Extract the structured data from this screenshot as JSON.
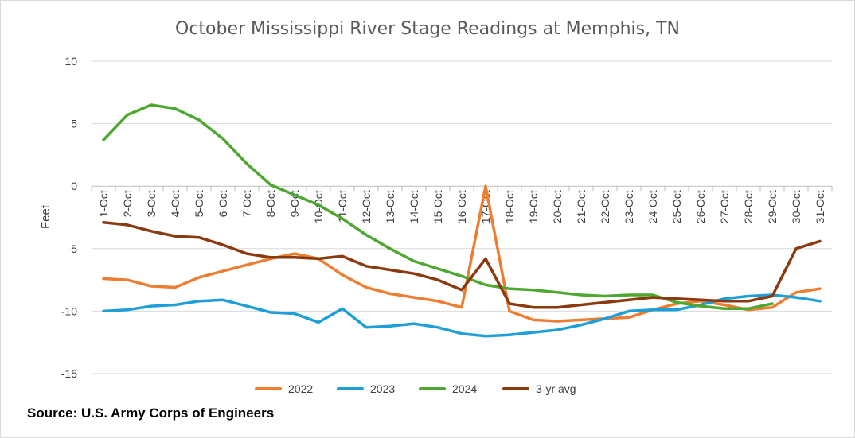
{
  "chart_data": {
    "type": "line",
    "title": "October Mississippi River Stage Readings at Memphis, TN",
    "xlabel": "",
    "ylabel": "Feet",
    "ylim": [
      -15,
      10
    ],
    "yticks": [
      10,
      5,
      0,
      -5,
      -10,
      -15
    ],
    "grid": true,
    "legend_position": "bottom",
    "categories": [
      "1-Oct",
      "2-Oct",
      "3-Oct",
      "4-Oct",
      "5-Oct",
      "6-Oct",
      "7-Oct",
      "8-Oct",
      "9-Oct",
      "10-Oct",
      "11-Oct",
      "12-Oct",
      "13-Oct",
      "14-Oct",
      "15-Oct",
      "16-Oct",
      "17-Oct",
      "18-Oct",
      "19-Oct",
      "20-Oct",
      "21-Oct",
      "22-Oct",
      "23-Oct",
      "24-Oct",
      "25-Oct",
      "26-Oct",
      "27-Oct",
      "28-Oct",
      "29-Oct",
      "30-Oct",
      "31-Oct"
    ],
    "series": [
      {
        "name": "2022",
        "color": "#ED7D31",
        "values": [
          -7.4,
          -7.5,
          -8.0,
          -8.1,
          -7.3,
          -6.8,
          -6.3,
          -5.8,
          -5.4,
          -5.8,
          -7.1,
          -8.1,
          -8.6,
          -8.9,
          -9.2,
          -9.7,
          0.0,
          -10.0,
          -10.7,
          -10.8,
          -10.7,
          -10.6,
          -10.5,
          -9.9,
          -9.4,
          -9.2,
          -9.5,
          -9.9,
          -9.7,
          -8.5,
          -8.2
        ]
      },
      {
        "name": "2023",
        "color": "#1F9FD8",
        "values": [
          -10.0,
          -9.9,
          -9.6,
          -9.5,
          -9.2,
          -9.1,
          -9.6,
          -10.1,
          -10.2,
          -10.9,
          -9.8,
          -11.3,
          -11.2,
          -11.0,
          -11.3,
          -11.8,
          -12.0,
          -11.9,
          -11.7,
          -11.5,
          -11.1,
          -10.6,
          -10.0,
          -9.9,
          -9.9,
          -9.5,
          -9.0,
          -8.8,
          -8.7,
          -8.9,
          -9.2
        ]
      },
      {
        "name": "2024",
        "color": "#4EA72E",
        "values": [
          3.7,
          5.7,
          6.5,
          6.2,
          5.3,
          3.8,
          1.8,
          0.1,
          -0.7,
          -1.5,
          -2.6,
          -3.9,
          -5.0,
          -6.0,
          -6.6,
          -7.2,
          -7.9,
          -8.2,
          -8.3,
          -8.5,
          -8.7,
          -8.8,
          -8.7,
          -8.7,
          -9.3,
          -9.6,
          -9.8,
          -9.8,
          -9.4,
          null,
          null
        ]
      },
      {
        "name": "3-yr avg",
        "color": "#8B3A0F",
        "values": [
          -2.9,
          -3.1,
          -3.6,
          -4.0,
          -4.1,
          -4.7,
          -5.4,
          -5.7,
          -5.7,
          -5.8,
          -5.6,
          -6.4,
          -6.7,
          -7.0,
          -7.5,
          -8.3,
          -5.8,
          -9.4,
          -9.7,
          -9.7,
          -9.5,
          -9.3,
          -9.1,
          -8.9,
          -9.0,
          -9.1,
          -9.2,
          -9.2,
          -8.8,
          -5.0,
          -4.4
        ]
      }
    ]
  },
  "source_text": "Source: U.S. Army Corps of Engineers"
}
